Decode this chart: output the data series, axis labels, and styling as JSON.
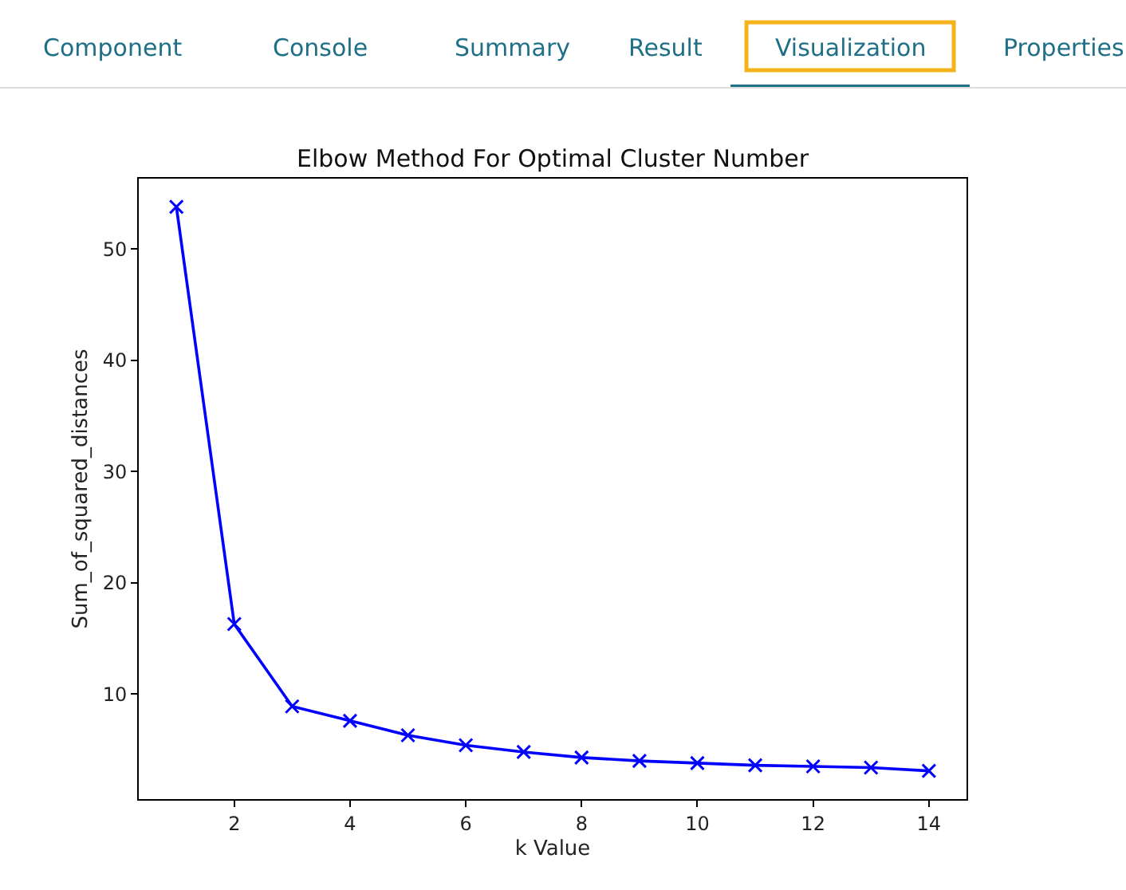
{
  "chart_data": {
    "type": "line",
    "title": "Elbow Method For Optimal Cluster Number",
    "xlabel": "k Value",
    "ylabel": "Sum_of_squared_distances",
    "x": [
      1,
      2,
      3,
      4,
      5,
      6,
      7,
      8,
      9,
      10,
      11,
      12,
      13,
      14
    ],
    "series": [
      {
        "color": "#0000ff",
        "values": [
          53.8,
          16.3,
          8.9,
          7.6,
          6.3,
          5.4,
          4.8,
          4.3,
          4.0,
          3.8,
          3.6,
          3.5,
          3.4,
          3.1
        ]
      }
    ],
    "xlim": [
      0.35,
      14.65
    ],
    "xticks": [
      2,
      4,
      6,
      8,
      10,
      12,
      14
    ],
    "ylim": [
      0.565,
      56.335
    ],
    "yticks": [
      10,
      20,
      30,
      40,
      50
    ],
    "marker": "cross",
    "line_style": "solid",
    "annotations": [
      "Component",
      "Console",
      "Summary",
      "Result",
      "Visualization",
      "Properties"
    ]
  }
}
